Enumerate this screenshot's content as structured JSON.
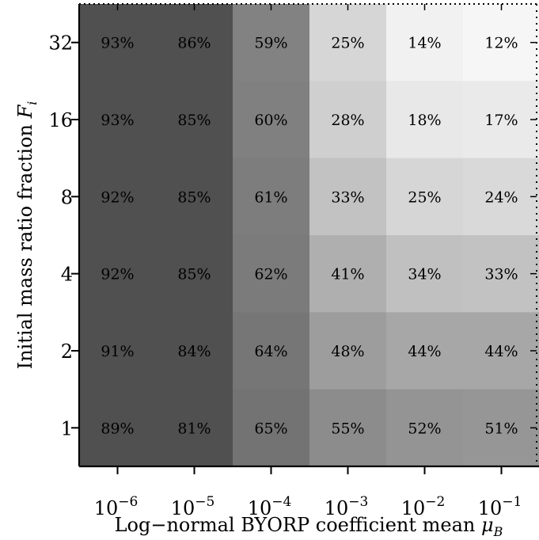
{
  "chart_data": {
    "type": "heatmap",
    "title": "",
    "xlabel_text": "Log−normal BYORP coefficient mean ",
    "xlabel_symbol": "μ",
    "xlabel_subscript": "B",
    "ylabel_text": "Initial mass ratio fraction ",
    "ylabel_symbol": "F",
    "ylabel_subscript": "i",
    "x_categories": [
      {
        "base": "10",
        "exp": "−6"
      },
      {
        "base": "10",
        "exp": "−5"
      },
      {
        "base": "10",
        "exp": "−4"
      },
      {
        "base": "10",
        "exp": "−3"
      },
      {
        "base": "10",
        "exp": "−2"
      },
      {
        "base": "10",
        "exp": "−1"
      }
    ],
    "y_categories": [
      "32",
      "16",
      "8",
      "4",
      "2",
      "1"
    ],
    "values": [
      [
        93,
        86,
        59,
        25,
        14,
        12
      ],
      [
        93,
        85,
        60,
        28,
        18,
        17
      ],
      [
        92,
        85,
        61,
        33,
        25,
        24
      ],
      [
        92,
        85,
        62,
        41,
        34,
        33
      ],
      [
        91,
        84,
        64,
        48,
        44,
        44
      ],
      [
        89,
        81,
        65,
        55,
        52,
        51
      ]
    ],
    "value_suffix": "%",
    "colormap": "grayscale, high=dark low=light",
    "grid": false
  }
}
